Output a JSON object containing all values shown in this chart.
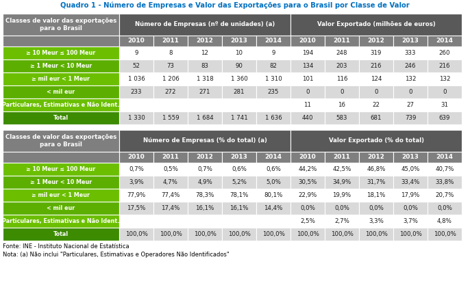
{
  "title": "Quadro 1 - Número de Empresas e Valor das Exportações para o Brasil por Classe de Valor",
  "title_color": "#0070C0",
  "years": [
    "2010",
    "2011",
    "2012",
    "2013",
    "2014"
  ],
  "row_labels": [
    "≥ 10 Meur ≤ 100 Meur",
    "≥ 1 Meur < 10 Meur",
    "≥ mil eur < 1 Meur",
    "< mil eur",
    "Particulares, Estimativas e Não Ident.",
    "Total"
  ],
  "col_header1_label": "Classes de valor das exportações\npara o Brasil",
  "col_header2_label": "Número de Empresas (nº de unidades) (a)",
  "col_header3_label": "Valor Exportado (milhões de euros)",
  "table1_num_empresas": [
    [
      "9",
      "8",
      "12",
      "10",
      "9"
    ],
    [
      "52",
      "73",
      "83",
      "90",
      "82"
    ],
    [
      "1 036",
      "1 206",
      "1 318",
      "1 360",
      "1 310"
    ],
    [
      "233",
      "272",
      "271",
      "281",
      "235"
    ],
    [
      "",
      "",
      "",
      "",
      ""
    ],
    [
      "1 330",
      "1 559",
      "1 684",
      "1 741",
      "1 636"
    ]
  ],
  "table1_valor_exportado": [
    [
      "194",
      "248",
      "319",
      "333",
      "260"
    ],
    [
      "134",
      "203",
      "216",
      "246",
      "216"
    ],
    [
      "101",
      "116",
      "124",
      "132",
      "132"
    ],
    [
      "0",
      "0",
      "0",
      "0",
      "0"
    ],
    [
      "11",
      "16",
      "22",
      "27",
      "31"
    ],
    [
      "440",
      "583",
      "681",
      "739",
      "639"
    ]
  ],
  "col_header2b_label": "Número de Empresas (% do total) (a)",
  "col_header3b_label": "Valor Exportado (% do total)",
  "table2_num_empresas": [
    [
      "0,7%",
      "0,5%",
      "0,7%",
      "0,6%",
      "0,6%"
    ],
    [
      "3,9%",
      "4,7%",
      "4,9%",
      "5,2%",
      "5,0%"
    ],
    [
      "77,9%",
      "77,4%",
      "78,3%",
      "78,1%",
      "80,1%"
    ],
    [
      "17,5%",
      "17,4%",
      "16,1%",
      "16,1%",
      "14,4%"
    ],
    [
      "",
      "",
      "",
      "",
      ""
    ],
    [
      "100,0%",
      "100,0%",
      "100,0%",
      "100,0%",
      "100,0%"
    ]
  ],
  "table2_valor_exportado": [
    [
      "44,2%",
      "42,5%",
      "46,8%",
      "45,0%",
      "40,7%"
    ],
    [
      "30,5%",
      "34,9%",
      "31,7%",
      "33,4%",
      "33,8%"
    ],
    [
      "22,9%",
      "19,9%",
      "18,1%",
      "17,9%",
      "20,7%"
    ],
    [
      "0,0%",
      "0,0%",
      "0,0%",
      "0,0%",
      "0,0%"
    ],
    [
      "2,5%",
      "2,7%",
      "3,3%",
      "3,7%",
      "4,8%"
    ],
    [
      "100,0%",
      "100,0%",
      "100,0%",
      "100,0%",
      "100,0%"
    ]
  ],
  "green_bright": "#6BBF00",
  "green_dark_row": "#5CAF00",
  "green_total": "#3D8B00",
  "gray_left_header": "#7F7F7F",
  "gray_col_header": "#595959",
  "gray_year_header": "#7F7F7F",
  "light_gray_bg": "#D9D9D9",
  "white": "#FFFFFF",
  "fonte_text": "Fonte: INE - Instituto Nacional de Estatística",
  "nota_text": "Nota: (a) Não inclui \"Particulares, Estimativas e Operadores Não Identificados\""
}
